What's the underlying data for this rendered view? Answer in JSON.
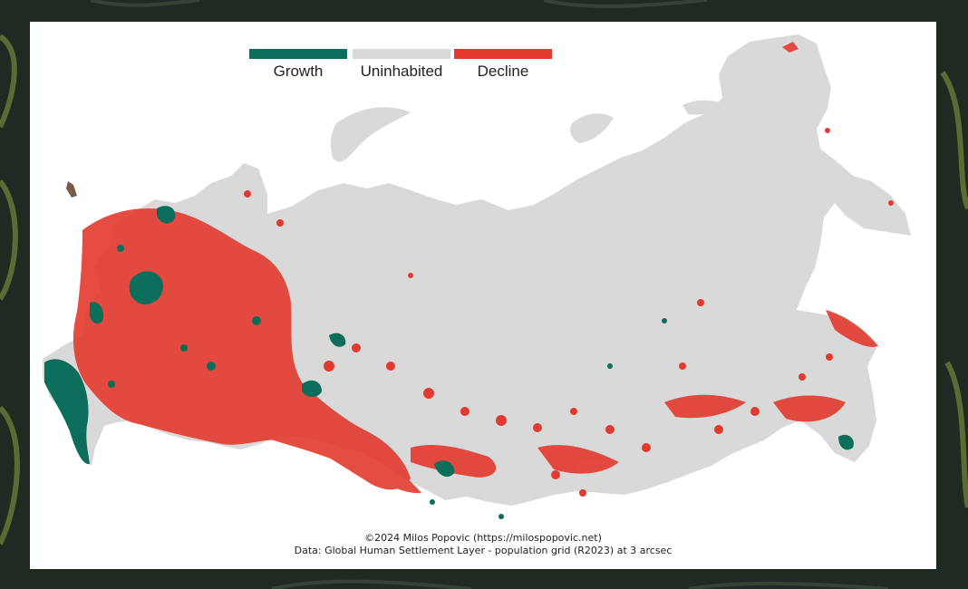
{
  "legend": {
    "items": [
      {
        "label": "Growth",
        "color": "#0b6e5a"
      },
      {
        "label": "Uninhabited",
        "color": "#d9d9d9"
      },
      {
        "label": "Decline",
        "color": "#e23a2e"
      }
    ]
  },
  "credits": {
    "line1": "©2024 Milos Popovic (https://milospopovic.net)",
    "line2": "Data: Global Human Settlement Layer - population grid (R2023) at 3 arcsec"
  },
  "colors": {
    "land": "#d9d9d9",
    "growth": "#0b6e5a",
    "decline": "#e23a2e",
    "background": "#ffffff",
    "outer": "#1f2a22"
  }
}
